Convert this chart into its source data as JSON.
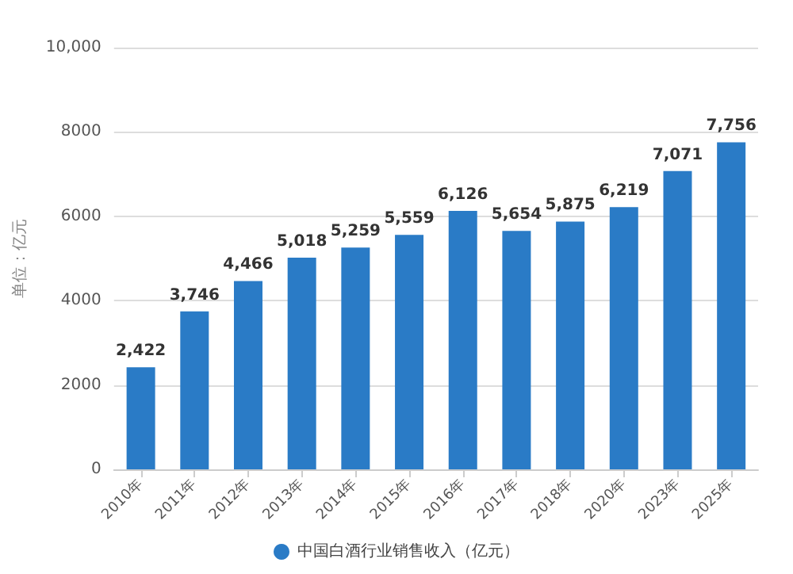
{
  "chart_data": {
    "type": "bar",
    "ylabel": "单位：亿元",
    "categories": [
      "2010年",
      "2011年",
      "2012年",
      "2013年",
      "2014年",
      "2015年",
      "2016年",
      "2017年",
      "2018年",
      "2020年",
      "2023年",
      "2025年"
    ],
    "series": [
      {
        "name": "中国白酒行业销售收入（亿元）",
        "color": "#2a7bc6",
        "values": [
          2422,
          3746,
          4466,
          5018,
          5259,
          5559,
          6126,
          5654,
          5875,
          6219,
          7071,
          7756
        ],
        "value_labels": [
          "2,422",
          "3,746",
          "4,466",
          "5,018",
          "5,259",
          "5,559",
          "6,126",
          "5,654",
          "5,875",
          "6,219",
          "7,071",
          "7,756"
        ]
      }
    ],
    "ylim": [
      0,
      10000
    ],
    "yticks": [
      0,
      2000,
      4000,
      6000,
      8000,
      {
        "value": 10000,
        "label": "10,000"
      }
    ],
    "grid": "y",
    "legend": "bottom"
  }
}
